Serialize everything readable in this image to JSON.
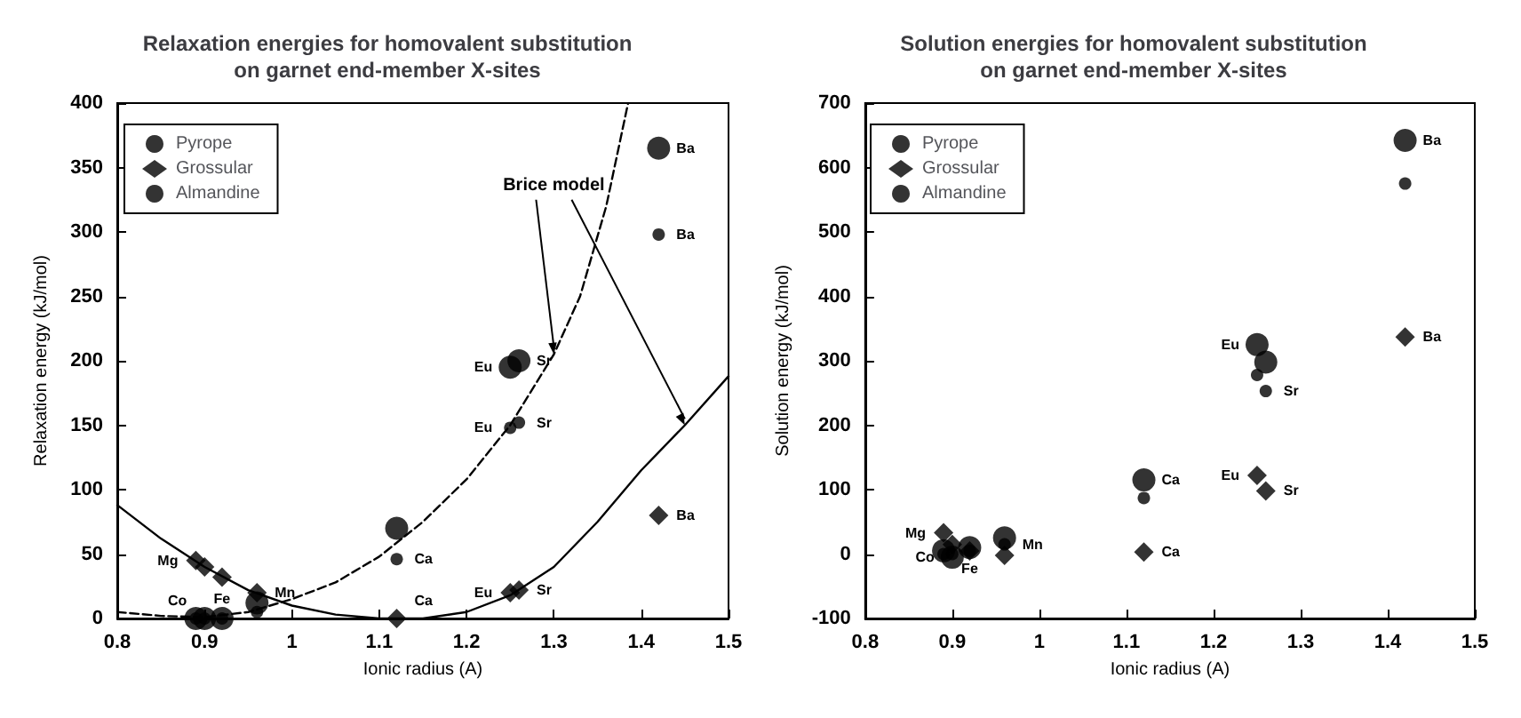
{
  "chart_data": [
    {
      "type": "scatter",
      "title": "Relaxation energies for homovalent substitution\non garnet end-member X-sites",
      "xlabel": "Ionic radius (A)",
      "ylabel": "Relaxation energy (kJ/mol)",
      "x": [
        0.89,
        0.9,
        0.92,
        0.96,
        1.12,
        1.25,
        1.26,
        1.42
      ],
      "series": [
        {
          "name": "Pyrope",
          "color": "#000000",
          "marker": "circle",
          "values": [
            0,
            0,
            0,
            12,
            70,
            195,
            200,
            365
          ]
        },
        {
          "name": "Grossular",
          "color": "#000000",
          "marker": "diamond",
          "values": [
            45,
            40,
            32,
            20,
            0,
            20,
            22,
            80
          ]
        },
        {
          "name": "Almandine",
          "color": "#000000",
          "marker": "circle",
          "values": [
            0,
            0,
            0,
            5,
            46,
            148,
            152,
            298
          ]
        },
        {
          "type": "line",
          "color": "#000000",
          "line_style": "dashed",
          "marker": "none",
          "x": [
            0.8,
            0.85,
            0.9,
            0.95,
            1.0,
            1.05,
            1.1,
            1.15,
            1.2,
            1.25,
            1.3,
            1.33,
            1.36,
            1.385
          ],
          "values": [
            5,
            2,
            1,
            5,
            15,
            28,
            48,
            75,
            108,
            150,
            205,
            250,
            320,
            400
          ]
        },
        {
          "type": "line",
          "color": "#000000",
          "line_style": "solid",
          "marker": "none",
          "x": [
            0.8,
            0.85,
            0.9,
            0.95,
            1.0,
            1.05,
            1.1,
            1.15,
            1.2,
            1.25,
            1.3,
            1.35,
            1.4,
            1.45,
            1.5
          ],
          "values": [
            88,
            62,
            40,
            22,
            10,
            3,
            0,
            0,
            5,
            18,
            40,
            75,
            115,
            150,
            188
          ]
        }
      ],
      "xlim": [
        0.8,
        1.5
      ],
      "xticks": [
        0.8,
        0.9,
        1,
        1.1,
        1.2,
        1.3,
        1.4,
        1.5
      ],
      "ylim": [
        0,
        400
      ],
      "yticks": [
        0,
        50,
        100,
        150,
        200,
        250,
        300,
        350,
        400
      ],
      "grid": false,
      "legend": "top left",
      "annotations": [
        {
          "text": "Brice model",
          "x": 1.3,
          "y": 205
        },
        {
          "text": "Mg",
          "x": 0.89,
          "y": 45
        },
        {
          "text": "Co",
          "x": 0.9,
          "y": 0
        },
        {
          "text": "Fe",
          "x": 0.92,
          "y": 32
        },
        {
          "text": "Mn",
          "x": 0.96,
          "y": 20
        },
        {
          "text": "Ca",
          "x": 1.12,
          "y": 46
        },
        {
          "text": "Ca",
          "x": 1.12,
          "y": 0
        },
        {
          "text": "Eu",
          "x": 1.25,
          "y": 195
        },
        {
          "text": "Sr",
          "x": 1.26,
          "y": 200
        },
        {
          "text": "Eu",
          "x": 1.25,
          "y": 148
        },
        {
          "text": "Sr",
          "x": 1.26,
          "y": 152
        },
        {
          "text": "Eu",
          "x": 1.25,
          "y": 20
        },
        {
          "text": "Sr",
          "x": 1.26,
          "y": 22
        },
        {
          "text": "Ba",
          "x": 1.42,
          "y": 365
        },
        {
          "text": "Ba",
          "x": 1.42,
          "y": 298
        },
        {
          "text": "Ba",
          "x": 1.42,
          "y": 80
        }
      ]
    },
    {
      "type": "scatter",
      "title": "Solution energies for homovalent substitution\non garnet end-member X-sites",
      "xlabel": "Ionic radius (A)",
      "ylabel": "Solution energy (kJ/mol)",
      "x": [
        0.89,
        0.9,
        0.92,
        0.96,
        1.12,
        1.25,
        1.26,
        1.42
      ],
      "series": [
        {
          "name": "Pyrope",
          "color": "#000000",
          "marker": "circle",
          "values": [
            5,
            -5,
            10,
            25,
            115,
            325,
            298,
            642
          ]
        },
        {
          "name": "Grossular",
          "color": "#000000",
          "marker": "diamond",
          "values": [
            33,
            15,
            5,
            -2,
            3,
            122,
            98,
            337
          ]
        },
        {
          "name": "Almandine",
          "color": "#000000",
          "marker": "circle",
          "values": [
            0,
            0,
            5,
            15,
            87,
            278,
            253,
            575
          ]
        }
      ],
      "xlim": [
        0.8,
        1.5
      ],
      "xticks": [
        0.8,
        0.9,
        1,
        1.1,
        1.2,
        1.3,
        1.4,
        1.5
      ],
      "ylim": [
        -100,
        700
      ],
      "yticks": [
        -100,
        0,
        100,
        200,
        300,
        400,
        500,
        600,
        700
      ],
      "grid": false,
      "legend": "top left",
      "annotations": [
        {
          "text": "Mg",
          "x": 0.89,
          "y": 33
        },
        {
          "text": "Co",
          "x": 0.9,
          "y": -5
        },
        {
          "text": "Fe",
          "x": 0.92,
          "y": 10
        },
        {
          "text": "Mn",
          "x": 0.96,
          "y": 15
        },
        {
          "text": "Ca",
          "x": 1.12,
          "y": 115
        },
        {
          "text": "Ca",
          "x": 1.12,
          "y": 3
        },
        {
          "text": "Eu",
          "x": 1.25,
          "y": 122
        },
        {
          "text": "Sr",
          "x": 1.26,
          "y": 98
        },
        {
          "text": "Eu",
          "x": 1.25,
          "y": 325
        },
        {
          "text": "Sr",
          "x": 1.26,
          "y": 253
        },
        {
          "text": "Ba",
          "x": 1.42,
          "y": 642
        },
        {
          "text": "Ba",
          "x": 1.42,
          "y": 337
        }
      ]
    }
  ]
}
